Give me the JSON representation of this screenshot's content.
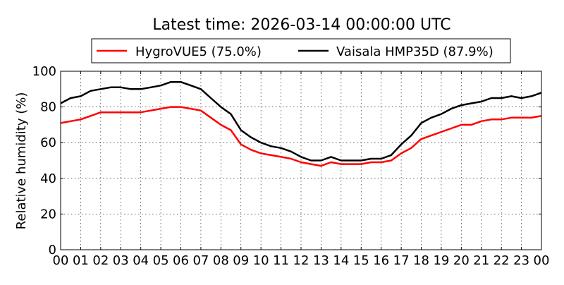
{
  "chart_data": {
    "type": "line",
    "title": "Latest time: 2026-03-14 00:00:00 UTC",
    "xlabel": "",
    "ylabel": "Relative humidity (%)",
    "xlim": [
      0,
      24
    ],
    "ylim": [
      0,
      100
    ],
    "grid": true,
    "legend_placement": "top-center, above plot",
    "x_tick_values": [
      0,
      1,
      2,
      3,
      4,
      5,
      6,
      7,
      8,
      9,
      10,
      11,
      12,
      13,
      14,
      15,
      16,
      17,
      18,
      19,
      20,
      21,
      22,
      23,
      24
    ],
    "x_tick_labels": [
      "00",
      "01",
      "02",
      "03",
      "04",
      "05",
      "06",
      "07",
      "08",
      "09",
      "10",
      "11",
      "12",
      "13",
      "14",
      "15",
      "16",
      "17",
      "18",
      "19",
      "20",
      "21",
      "22",
      "23",
      "00"
    ],
    "y_tick_values": [
      0,
      20,
      40,
      60,
      80,
      100
    ],
    "y_tick_labels": [
      "0",
      "20",
      "40",
      "60",
      "80",
      "100"
    ],
    "x": [
      0,
      0.5,
      1,
      1.5,
      2,
      2.5,
      3,
      3.5,
      4,
      4.5,
      5,
      5.5,
      6,
      6.5,
      7,
      7.5,
      8,
      8.5,
      9,
      9.5,
      10,
      10.5,
      11,
      11.5,
      12,
      12.5,
      13,
      13.5,
      14,
      14.5,
      15,
      15.5,
      16,
      16.5,
      17,
      17.5,
      18,
      18.5,
      19,
      19.5,
      20,
      20.5,
      21,
      21.5,
      22,
      22.5,
      23,
      23.5,
      24
    ],
    "series": [
      {
        "name": "HygroVUE5 (75.0%)",
        "color": "#ff0000",
        "values": [
          71,
          72,
          73,
          75,
          77,
          77,
          77,
          77,
          77,
          78,
          79,
          80,
          80,
          79,
          78,
          74,
          70,
          67,
          59,
          56,
          54,
          53,
          52,
          51,
          49,
          48,
          47,
          49,
          48,
          48,
          48,
          49,
          49,
          50,
          54,
          57,
          62,
          64,
          66,
          68,
          70,
          70,
          72,
          73,
          73,
          74,
          74,
          74,
          75
        ]
      },
      {
        "name": "Vaisala HMP35D (87.9%)",
        "color": "#000000",
        "values": [
          82,
          85,
          86,
          89,
          90,
          91,
          91,
          90,
          90,
          91,
          92,
          94,
          94,
          92,
          90,
          85,
          80,
          76,
          67,
          63,
          60,
          58,
          57,
          55,
          52,
          50,
          50,
          52,
          50,
          50,
          50,
          51,
          51,
          53,
          59,
          64,
          71,
          74,
          76,
          79,
          81,
          82,
          83,
          85,
          85,
          86,
          85,
          86,
          88
        ]
      }
    ]
  }
}
